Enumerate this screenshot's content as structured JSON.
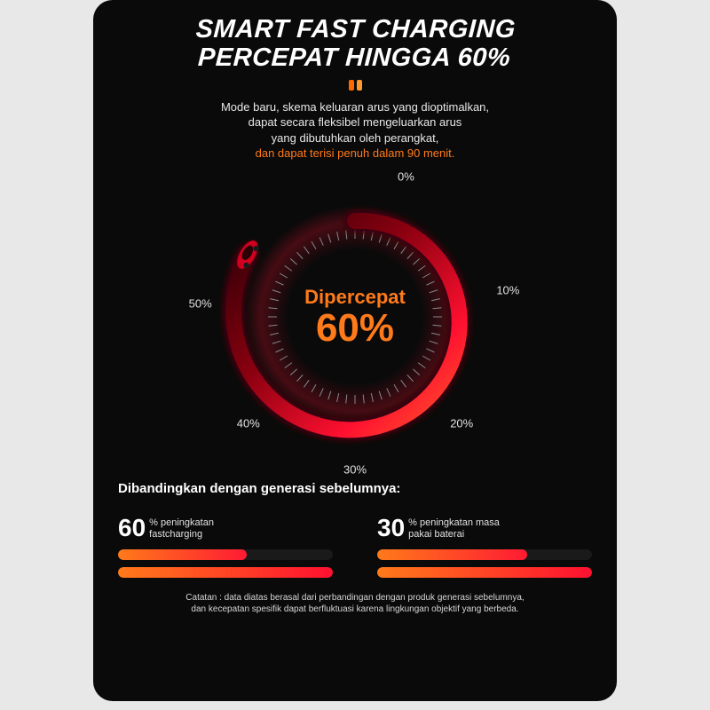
{
  "background_color": "#e8e8e8",
  "panel_bg": "#0a0a0a",
  "accent_orange": "#ff7a1a",
  "accent_red": "#ff1a33",
  "accent_deep_red": "#b3001b",
  "title": {
    "line1": "SMART FAST CHARGING",
    "line2": "PERCEPAT HINGGA 60%",
    "color": "#ffffff",
    "fontsize": 29
  },
  "dots": [
    {
      "color": "#ff6a00"
    },
    {
      "color": "#ff9a2e"
    }
  ],
  "description": {
    "lines": [
      "Mode baru, skema keluaran arus yang dioptimalkan,",
      "dapat secara fleksibel mengeluarkan arus",
      "yang dibutuhkan oleh perangkat,"
    ],
    "highlight": "dan dapat terisi penuh dalam 90 menit.",
    "highlight_color": "#ff7a1a",
    "text_color": "#e8e8e8",
    "fontsize": 13
  },
  "gauge": {
    "type": "radial-gauge",
    "outer_radius": 130,
    "inner_radius": 102,
    "ring_stroke": 18,
    "tick_count": 60,
    "tick_color": "#888888",
    "center_label": "Dipercepat",
    "center_value": "60%",
    "center_color": "#ff7a1a",
    "swirl_start_deg": -90,
    "swirl_sweep_deg": 300,
    "swirl_gradient": [
      "#2a0005",
      "#8a0010",
      "#ff1030",
      "#ff5a2a"
    ],
    "glow_color": "#ff0a2a",
    "labels": [
      {
        "text": "0%",
        "angle_deg": -70,
        "r": 168
      },
      {
        "text": "10%",
        "angle_deg": -10,
        "r": 175
      },
      {
        "text": "20%",
        "angle_deg": 45,
        "r": 170
      },
      {
        "text": "30%",
        "angle_deg": 90,
        "r": 172
      },
      {
        "text": "40%",
        "angle_deg": 135,
        "r": 170
      },
      {
        "text": "50%",
        "angle_deg": 185,
        "r": 175
      }
    ]
  },
  "compare_heading": "Dibandingkan dengan generasi sebelumnya:",
  "stats": [
    {
      "value": "60",
      "label_lines": [
        "% peningkatan",
        "fastcharging"
      ],
      "bars": [
        {
          "fill_pct": 60,
          "colors": [
            "#ff7a1a",
            "#ff1a33"
          ]
        },
        {
          "fill_pct": 100,
          "colors": [
            "#ff7a1a",
            "#ff1030"
          ]
        }
      ]
    },
    {
      "value": "30",
      "label_lines": [
        "% peningkatan masa",
        "pakai baterai"
      ],
      "bars": [
        {
          "fill_pct": 70,
          "colors": [
            "#ff7a1a",
            "#ff1a33"
          ]
        },
        {
          "fill_pct": 100,
          "colors": [
            "#ff7a1a",
            "#ff1030"
          ]
        }
      ]
    }
  ],
  "footnote": {
    "line1": "Catatan : data diatas berasal dari perbandingan dengan produk generasi sebelumnya,",
    "line2": "dan kecepatan spesifik dapat berfluktuasi karena lingkungan objektif yang berbeda."
  }
}
